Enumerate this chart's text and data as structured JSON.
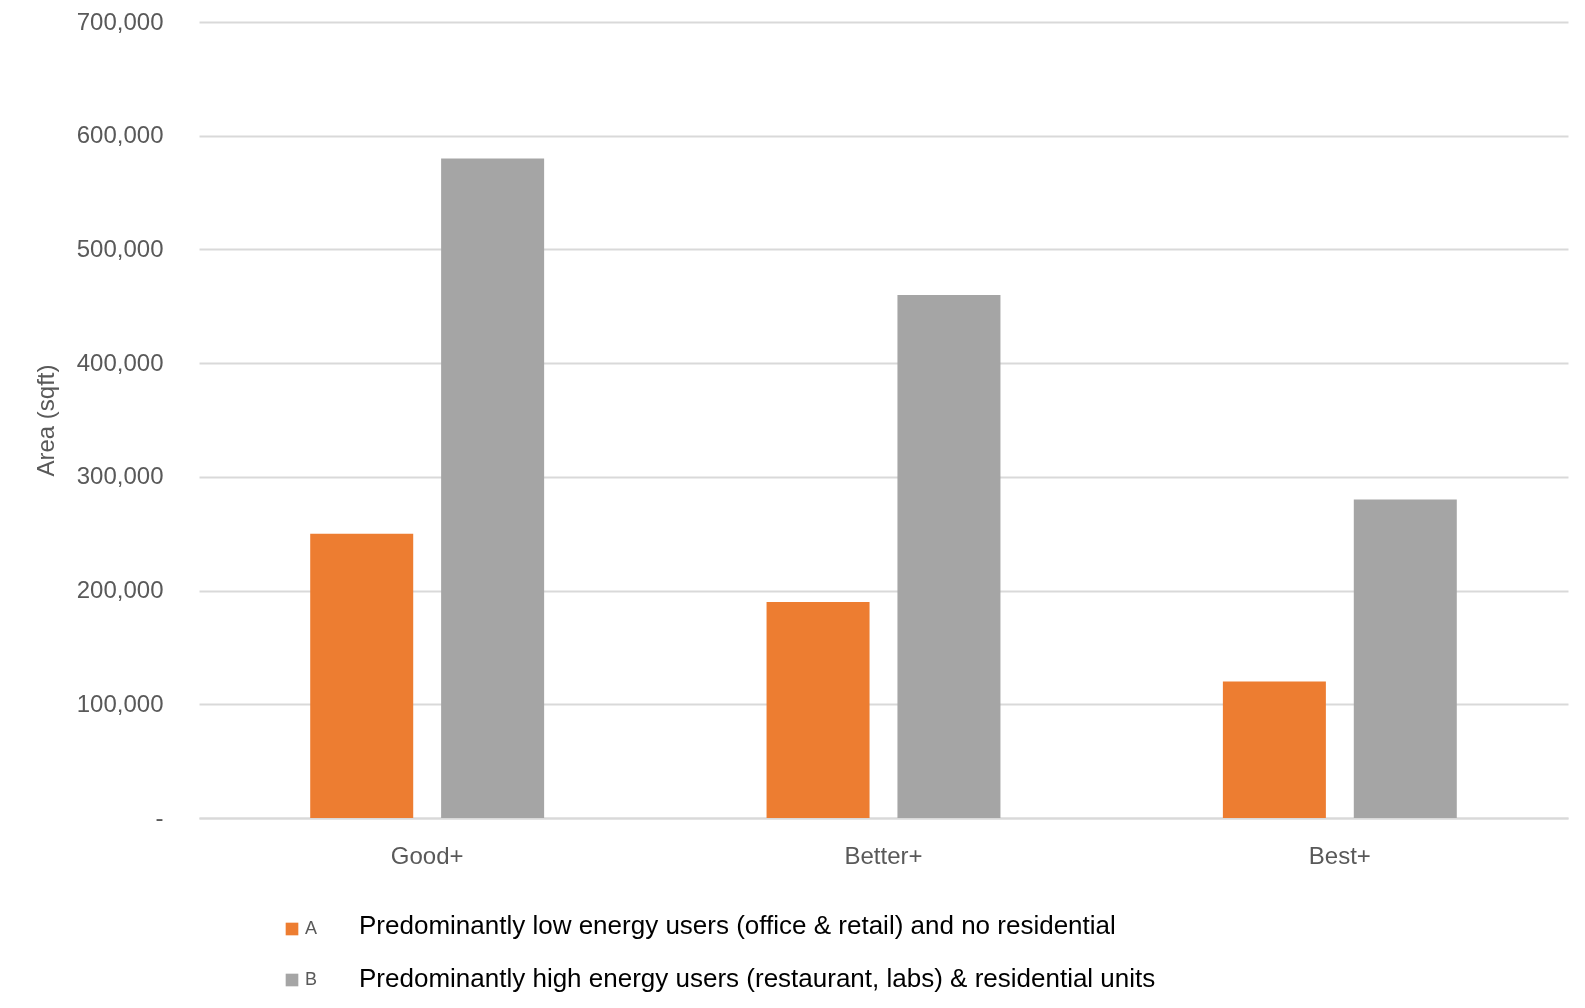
{
  "chart_data": {
    "type": "bar",
    "ylabel": "Area (sqft)",
    "categories": [
      "Good+",
      "Better+",
      "Best+"
    ],
    "series": [
      {
        "name": "A",
        "color": "#ed7d31",
        "values": [
          250000,
          190000,
          120000
        ]
      },
      {
        "name": "B",
        "color": "#a5a5a5",
        "values": [
          580000,
          460000,
          280000
        ]
      }
    ],
    "ylim": [
      0,
      700000
    ],
    "yticks": [
      {
        "value": 0,
        "label": "-"
      },
      {
        "value": 100000,
        "label": "100,000"
      },
      {
        "value": 200000,
        "label": "200,000"
      },
      {
        "value": 300000,
        "label": "300,000"
      },
      {
        "value": 400000,
        "label": "400,000"
      },
      {
        "value": 500000,
        "label": "500,000"
      },
      {
        "value": 600000,
        "label": "600,000"
      },
      {
        "value": 700000,
        "label": "700,000"
      }
    ],
    "grid": "y",
    "legend": "bottom",
    "annotations": [
      "Predominantly low energy users (office & retail) and no residential",
      "Predominantly high energy users (restaurant, labs) & residential units"
    ]
  }
}
